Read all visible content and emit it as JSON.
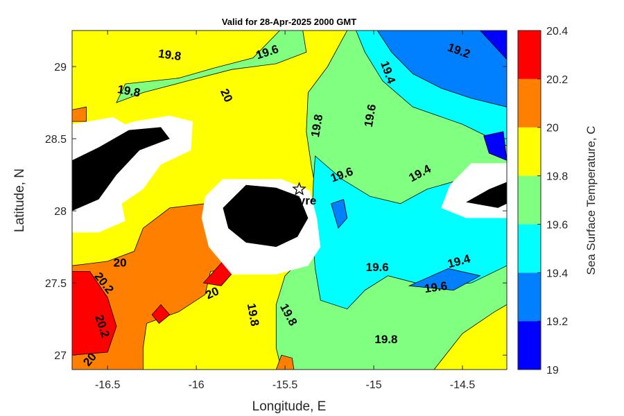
{
  "chart_data": {
    "type": "heatmap",
    "subtype": "filled-contour map",
    "title": "Valid for 28-Apr-2025 2000 GMT",
    "xlabel": "Longitude, E",
    "ylabel": "Latitude, N",
    "xlim": [
      -16.7,
      -14.25
    ],
    "ylim": [
      26.9,
      29.25
    ],
    "xticks": [
      -16.5,
      -16,
      -15.5,
      -15,
      -14.5
    ],
    "xtick_labels": [
      "-16.5",
      "-16",
      "-15.5",
      "-15",
      "-14.5"
    ],
    "yticks": [
      27,
      27.5,
      28,
      28.5,
      29
    ],
    "ytick_labels": [
      "27",
      "27.5",
      "28",
      "28.5",
      "29"
    ],
    "colorbar": {
      "label": "Sea Surface Temperature, C",
      "levels": [
        19,
        19.2,
        19.4,
        19.6,
        19.8,
        20,
        20.2,
        20.4
      ],
      "tick_labels": [
        "19",
        "19.2",
        "19.4",
        "19.6",
        "19.8",
        "20",
        "20.2",
        "20.4"
      ],
      "colors": [
        "#0000ff",
        "#0080ff",
        "#00ffff",
        "#80ff80",
        "#ffff00",
        "#ff8000",
        "#ff0000"
      ]
    },
    "land_color": "#000000",
    "mask_color": "#ffffff",
    "regions": [
      {
        "level_index": 4,
        "poly": [
          [
            -16.7,
            29.25
          ],
          [
            -14.25,
            29.25
          ],
          [
            -14.25,
            26.9
          ],
          [
            -16.7,
            26.9
          ]
        ]
      },
      {
        "level_index": 3,
        "poly": [
          [
            -16.4,
            28.88
          ],
          [
            -16.1,
            28.92
          ],
          [
            -15.9,
            28.99
          ],
          [
            -15.68,
            29.06
          ],
          [
            -15.53,
            29.25
          ],
          [
            -15.15,
            29.25
          ],
          [
            -15.26,
            29.0
          ],
          [
            -15.37,
            28.82
          ],
          [
            -15.38,
            28.55
          ],
          [
            -15.35,
            28.3
          ],
          [
            -15.32,
            28.1
          ],
          [
            -15.3,
            27.85
          ],
          [
            -15.36,
            27.72
          ],
          [
            -15.5,
            27.55
          ],
          [
            -15.55,
            27.35
          ],
          [
            -15.55,
            27.05
          ],
          [
            -15.52,
            26.9
          ],
          [
            -14.66,
            26.9
          ],
          [
            -14.5,
            27.15
          ],
          [
            -14.32,
            27.3
          ],
          [
            -14.25,
            27.35
          ],
          [
            -14.25,
            28.55
          ],
          [
            -14.45,
            28.7
          ],
          [
            -14.65,
            28.9
          ],
          [
            -14.75,
            29.1
          ],
          [
            -14.8,
            29.25
          ],
          [
            -15.4,
            29.25
          ],
          [
            -15.38,
            29.1
          ],
          [
            -15.55,
            29.02
          ],
          [
            -15.8,
            28.98
          ],
          [
            -16.05,
            28.9
          ],
          [
            -16.3,
            28.82
          ],
          [
            -16.45,
            28.75
          ]
        ]
      },
      {
        "level_index": 2,
        "poly": [
          [
            -15.1,
            29.25
          ],
          [
            -14.25,
            29.25
          ],
          [
            -14.25,
            28.45
          ],
          [
            -14.5,
            28.6
          ],
          [
            -14.78,
            28.72
          ],
          [
            -14.95,
            28.9
          ],
          [
            -15.05,
            29.1
          ]
        ]
      },
      {
        "level_index": 2,
        "poly": [
          [
            -15.33,
            28.38
          ],
          [
            -15.18,
            28.22
          ],
          [
            -15.02,
            28.1
          ],
          [
            -14.85,
            28.05
          ],
          [
            -14.7,
            28.15
          ],
          [
            -14.5,
            28.22
          ],
          [
            -14.3,
            28.26
          ],
          [
            -14.25,
            28.25
          ],
          [
            -14.25,
            27.62
          ],
          [
            -14.45,
            27.5
          ],
          [
            -14.7,
            27.48
          ],
          [
            -14.92,
            27.55
          ],
          [
            -15.05,
            27.45
          ],
          [
            -15.15,
            27.32
          ],
          [
            -15.3,
            27.38
          ],
          [
            -15.33,
            27.6
          ],
          [
            -15.35,
            27.9
          ],
          [
            -15.34,
            28.2
          ]
        ]
      },
      {
        "level_index": 1,
        "poly": [
          [
            -14.98,
            29.25
          ],
          [
            -14.25,
            29.25
          ],
          [
            -14.25,
            28.72
          ],
          [
            -14.45,
            28.78
          ],
          [
            -14.62,
            28.85
          ],
          [
            -14.78,
            28.95
          ],
          [
            -14.9,
            29.1
          ]
        ]
      },
      {
        "level_index": 1,
        "poly": [
          [
            -15.24,
            28.05
          ],
          [
            -15.17,
            28.08
          ],
          [
            -15.15,
            27.95
          ],
          [
            -15.2,
            27.88
          ]
        ]
      },
      {
        "level_index": 1,
        "poly": [
          [
            -14.8,
            27.48
          ],
          [
            -14.58,
            27.6
          ],
          [
            -14.4,
            27.55
          ],
          [
            -14.55,
            27.45
          ]
        ]
      },
      {
        "level_index": 0,
        "poly": [
          [
            -14.4,
            29.25
          ],
          [
            -14.25,
            29.25
          ],
          [
            -14.25,
            29.05
          ]
        ]
      },
      {
        "level_index": 0,
        "poly": [
          [
            -14.38,
            28.52
          ],
          [
            -14.27,
            28.55
          ],
          [
            -14.25,
            28.35
          ],
          [
            -14.35,
            28.4
          ]
        ]
      },
      {
        "level_index": 5,
        "poly": [
          [
            -16.7,
            28.7
          ],
          [
            -16.62,
            28.72
          ],
          [
            -16.62,
            28.62
          ],
          [
            -16.7,
            28.62
          ]
        ]
      },
      {
        "level_index": 5,
        "poly": [
          [
            -16.7,
            27.62
          ],
          [
            -16.5,
            27.65
          ],
          [
            -16.35,
            27.72
          ],
          [
            -16.3,
            27.88
          ],
          [
            -16.15,
            28.02
          ],
          [
            -15.95,
            28.05
          ],
          [
            -15.85,
            27.95
          ],
          [
            -15.65,
            27.78
          ],
          [
            -15.68,
            27.62
          ],
          [
            -15.92,
            27.58
          ],
          [
            -15.95,
            27.42
          ],
          [
            -16.1,
            27.3
          ],
          [
            -16.28,
            27.22
          ],
          [
            -16.3,
            27.05
          ],
          [
            -16.3,
            26.9
          ],
          [
            -16.7,
            26.9
          ]
        ]
      },
      {
        "level_index": 5,
        "poly": [
          [
            -15.52,
            27.0
          ],
          [
            -15.46,
            26.98
          ],
          [
            -15.45,
            26.9
          ],
          [
            -15.55,
            26.9
          ]
        ]
      },
      {
        "level_index": 6,
        "poly": [
          [
            -16.7,
            27.58
          ],
          [
            -16.6,
            27.58
          ],
          [
            -16.5,
            27.4
          ],
          [
            -16.45,
            27.2
          ],
          [
            -16.5,
            27.02
          ],
          [
            -16.7,
            27.0
          ]
        ]
      },
      {
        "level_index": 6,
        "poly": [
          [
            -15.85,
            27.65
          ],
          [
            -15.76,
            27.62
          ],
          [
            -15.86,
            27.48
          ],
          [
            -15.96,
            27.5
          ]
        ]
      },
      {
        "level_index": 6,
        "poly": [
          [
            -16.2,
            27.35
          ],
          [
            -16.15,
            27.28
          ],
          [
            -16.21,
            27.22
          ],
          [
            -16.25,
            27.28
          ]
        ]
      }
    ],
    "masks": [
      {
        "poly": [
          [
            -16.7,
            28.6
          ],
          [
            -16.47,
            28.65
          ],
          [
            -16.4,
            28.6
          ],
          [
            -16.35,
            28.62
          ],
          [
            -16.15,
            28.66
          ],
          [
            -16.02,
            28.62
          ],
          [
            -16.03,
            28.42
          ],
          [
            -16.2,
            28.32
          ],
          [
            -16.3,
            28.15
          ],
          [
            -16.42,
            28.05
          ],
          [
            -16.4,
            27.93
          ],
          [
            -16.55,
            27.85
          ],
          [
            -16.7,
            27.85
          ]
        ]
      },
      {
        "poly": [
          [
            -15.85,
            28.22
          ],
          [
            -15.52,
            28.22
          ],
          [
            -15.36,
            28.14
          ],
          [
            -15.32,
            27.95
          ],
          [
            -15.3,
            27.75
          ],
          [
            -15.37,
            27.62
          ],
          [
            -15.55,
            27.56
          ],
          [
            -15.8,
            27.56
          ],
          [
            -15.93,
            27.75
          ],
          [
            -15.97,
            27.95
          ],
          [
            -15.95,
            28.1
          ]
        ]
      },
      {
        "poly": [
          [
            -14.25,
            28.33
          ],
          [
            -14.45,
            28.33
          ],
          [
            -14.57,
            28.18
          ],
          [
            -14.62,
            28.02
          ],
          [
            -14.48,
            27.95
          ],
          [
            -14.25,
            27.95
          ]
        ]
      }
    ],
    "land": [
      {
        "poly": [
          [
            -16.7,
            28.35
          ],
          [
            -16.55,
            28.44
          ],
          [
            -16.38,
            28.56
          ],
          [
            -16.2,
            28.58
          ],
          [
            -16.15,
            28.5
          ],
          [
            -16.32,
            28.42
          ],
          [
            -16.45,
            28.25
          ],
          [
            -16.55,
            28.08
          ],
          [
            -16.7,
            28.0
          ]
        ]
      },
      {
        "poly": [
          [
            -15.72,
            28.18
          ],
          [
            -15.55,
            28.16
          ],
          [
            -15.42,
            28.1
          ],
          [
            -15.37,
            27.95
          ],
          [
            -15.43,
            27.82
          ],
          [
            -15.55,
            27.75
          ],
          [
            -15.72,
            27.78
          ],
          [
            -15.82,
            27.88
          ],
          [
            -15.85,
            28.02
          ]
        ]
      },
      {
        "poly": [
          [
            -14.25,
            28.2
          ],
          [
            -14.35,
            28.15
          ],
          [
            -14.48,
            28.06
          ],
          [
            -14.3,
            28.02
          ],
          [
            -14.25,
            28.05
          ]
        ]
      }
    ],
    "contour_labels": [
      {
        "text": "19.8",
        "x": -16.15,
        "y": 29.08,
        "rotate": 8
      },
      {
        "text": "19.6",
        "x": -15.6,
        "y": 29.1,
        "rotate": -18
      },
      {
        "text": "19.2",
        "x": -14.52,
        "y": 29.11,
        "rotate": 20
      },
      {
        "text": "19.8",
        "x": -16.38,
        "y": 28.83,
        "rotate": 10
      },
      {
        "text": "20",
        "x": -15.83,
        "y": 28.8,
        "rotate": 65
      },
      {
        "text": "19.4",
        "x": -14.92,
        "y": 28.96,
        "rotate": 70
      },
      {
        "text": "19.6",
        "x": -15.02,
        "y": 28.66,
        "rotate": -80
      },
      {
        "text": "19.8",
        "x": -15.32,
        "y": 28.59,
        "rotate": -80
      },
      {
        "text": "19.6",
        "x": -15.18,
        "y": 28.25,
        "rotate": -20
      },
      {
        "text": "19.4",
        "x": -14.74,
        "y": 28.26,
        "rotate": -28
      },
      {
        "text": "20",
        "x": -16.43,
        "y": 27.64,
        "rotate": 0
      },
      {
        "text": "20.2",
        "x": -16.52,
        "y": 27.5,
        "rotate": 52
      },
      {
        "text": "20.2",
        "x": -16.53,
        "y": 27.2,
        "rotate": 72
      },
      {
        "text": "20",
        "x": -16.6,
        "y": 26.97,
        "rotate": -50
      },
      {
        "text": "20",
        "x": -15.91,
        "y": 27.43,
        "rotate": -25
      },
      {
        "text": "19.8",
        "x": -15.68,
        "y": 27.28,
        "rotate": 80
      },
      {
        "text": "19.8",
        "x": -15.48,
        "y": 27.28,
        "rotate": 62
      },
      {
        "text": "19.6",
        "x": -14.98,
        "y": 27.61,
        "rotate": 0
      },
      {
        "text": "19.4",
        "x": -14.52,
        "y": 27.65,
        "rotate": -15
      },
      {
        "text": "19.6",
        "x": -14.65,
        "y": 27.47,
        "rotate": -8
      },
      {
        "text": "19.8",
        "x": -14.93,
        "y": 27.11,
        "rotate": 0
      }
    ],
    "annotation": {
      "text": "yre",
      "marker": "star",
      "x": -15.42,
      "y": 28.15
    }
  }
}
